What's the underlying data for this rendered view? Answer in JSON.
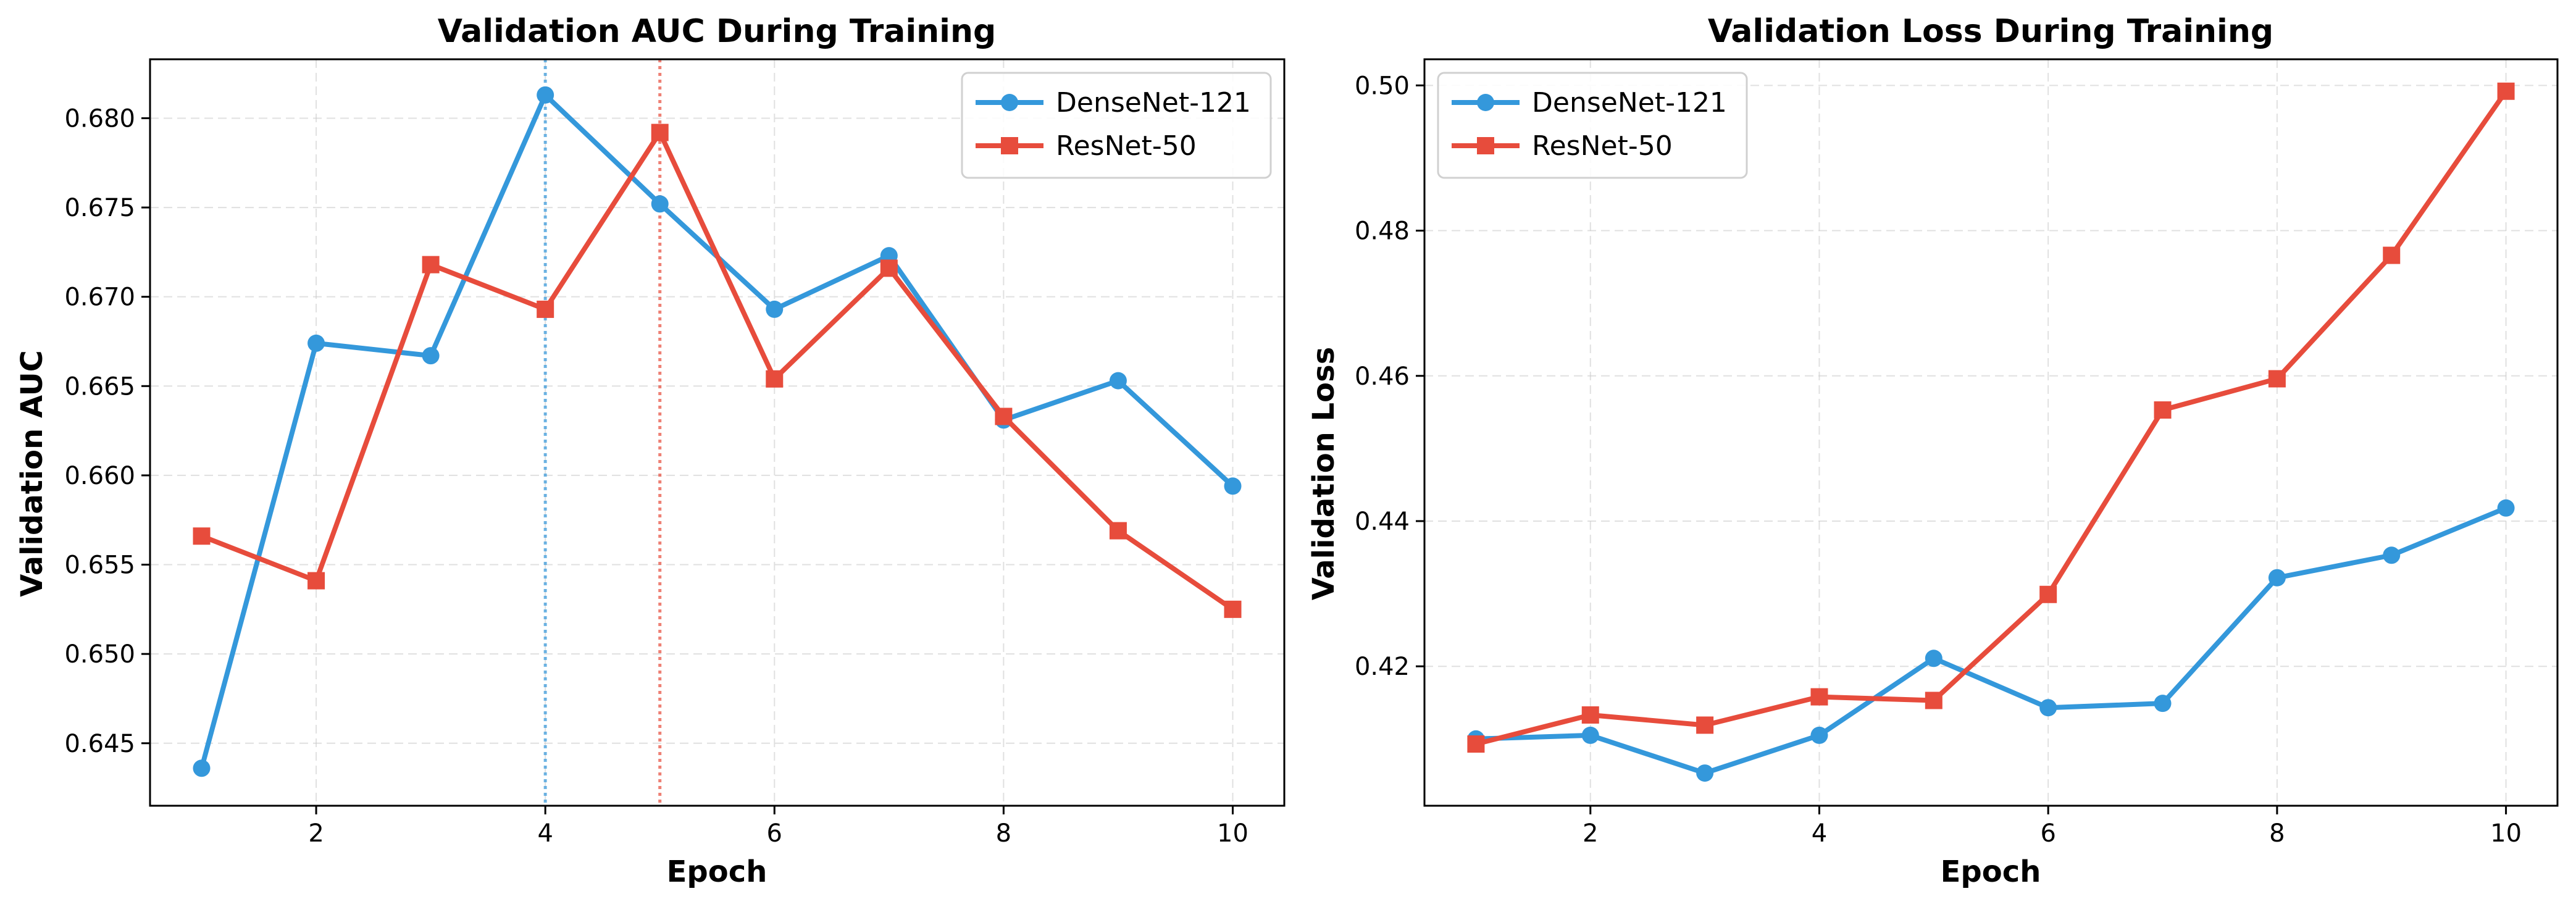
{
  "colors": {
    "densenet": "#3498db",
    "resnet": "#e74c3c",
    "grid": "#cccccc"
  },
  "chart_data": [
    {
      "type": "line",
      "title": "Validation AUC During Training",
      "xlabel": "Epoch",
      "ylabel": "Validation AUC",
      "xlim": [
        0.55,
        10.45
      ],
      "ylim": [
        0.6415,
        0.6833
      ],
      "xticks": [
        2,
        4,
        6,
        8,
        10
      ],
      "xtick_labels": [
        "2",
        "4",
        "6",
        "8",
        "10"
      ],
      "yticks": [
        0.645,
        0.65,
        0.655,
        0.66,
        0.665,
        0.67,
        0.675,
        0.68
      ],
      "ytick_labels": [
        "0.645",
        "0.650",
        "0.655",
        "0.660",
        "0.665",
        "0.670",
        "0.675",
        "0.680"
      ],
      "grid": true,
      "legend_position": "top-right",
      "x": [
        1,
        2,
        3,
        4,
        5,
        6,
        7,
        8,
        9,
        10
      ],
      "series": [
        {
          "name": "DenseNet-121",
          "marker": "circle",
          "color_key": "densenet",
          "values": [
            0.6436,
            0.6674,
            0.6667,
            0.6813,
            0.6752,
            0.6693,
            0.6723,
            0.6631,
            0.6653,
            0.6594
          ]
        },
        {
          "name": "ResNet-50",
          "marker": "square",
          "color_key": "resnet",
          "values": [
            0.6566,
            0.6541,
            0.6718,
            0.6693,
            0.6792,
            0.6654,
            0.6716,
            0.6633,
            0.6569,
            0.6525
          ]
        }
      ],
      "vlines": [
        {
          "x": 4,
          "color_key": "densenet",
          "style": "dotted"
        },
        {
          "x": 5,
          "color_key": "resnet",
          "style": "dotted"
        }
      ]
    },
    {
      "type": "line",
      "title": "Validation Loss During Training",
      "xlabel": "Epoch",
      "ylabel": "Validation Loss",
      "xlim": [
        0.55,
        10.45
      ],
      "ylim": [
        0.4008,
        0.5036
      ],
      "xticks": [
        2,
        4,
        6,
        8,
        10
      ],
      "xtick_labels": [
        "2",
        "4",
        "6",
        "8",
        "10"
      ],
      "yticks": [
        0.42,
        0.44,
        0.46,
        0.48,
        0.5
      ],
      "ytick_labels": [
        "0.42",
        "0.44",
        "0.46",
        "0.48",
        "0.50"
      ],
      "grid": true,
      "legend_position": "top-left",
      "x": [
        1,
        2,
        3,
        4,
        5,
        6,
        7,
        8,
        9,
        10
      ],
      "series": [
        {
          "name": "DenseNet-121",
          "marker": "circle",
          "color_key": "densenet",
          "values": [
            0.41,
            0.4105,
            0.4053,
            0.4105,
            0.4211,
            0.4143,
            0.4149,
            0.4322,
            0.4353,
            0.4418
          ]
        },
        {
          "name": "ResNet-50",
          "marker": "square",
          "color_key": "resnet",
          "values": [
            0.4093,
            0.4133,
            0.4119,
            0.4158,
            0.4153,
            0.4299,
            0.4553,
            0.4596,
            0.4766,
            0.4992
          ]
        }
      ],
      "vlines": []
    }
  ]
}
